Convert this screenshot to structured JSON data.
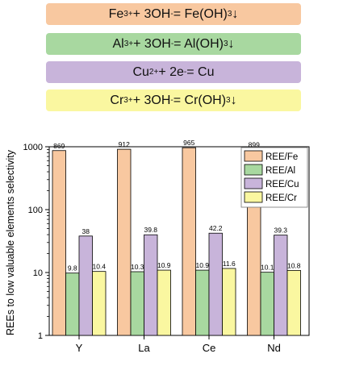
{
  "equations": {
    "fe": {
      "ion": "Fe",
      "charge": "3+",
      "mid": " + 3OH",
      "neg": "-",
      "eq": " = Fe(OH)",
      "sub": "3",
      "arrow": "↓",
      "color": "#F8C8A0"
    },
    "al": {
      "ion": "Al",
      "charge": "3+",
      "mid": " + 3OH",
      "neg": "-",
      "eq": " = Al(OH)",
      "sub": "3",
      "arrow": "↓",
      "color": "#A8D8A0"
    },
    "cu": {
      "ion": "Cu",
      "charge": "2+",
      "mid": " + 2e",
      "neg": "-",
      "eq": " = Cu",
      "color": "#C8B4DA"
    },
    "cr": {
      "ion": "Cr",
      "charge": "3+",
      "mid": " + 3OH",
      "neg": "-",
      "eq": " = Cr(OH)",
      "sub": "3",
      "arrow": "↓",
      "color": "#FAF7A0"
    }
  },
  "chart_data": {
    "type": "bar",
    "ylabel": "REEs to low valuable elements selectivity",
    "xlabel": "",
    "yscale": "log",
    "ylim": [
      1,
      1000
    ],
    "yticks": [
      "1",
      "10",
      "100",
      "1000"
    ],
    "categories": [
      "Y",
      "La",
      "Ce",
      "Nd"
    ],
    "series": [
      {
        "name": "REE/Fe",
        "values": [
          869,
          912,
          965,
          899
        ],
        "labels": [
          "869",
          "912",
          "965",
          "899"
        ],
        "color": "#F8C8A0"
      },
      {
        "name": "REE/Al",
        "values": [
          9.8,
          10.3,
          10.9,
          10.1
        ],
        "labels": [
          "9.8",
          "10.3",
          "10.9",
          "10.1"
        ],
        "color": "#A8D8A0"
      },
      {
        "name": "REE/Cu",
        "values": [
          38,
          39.8,
          42.2,
          39.3
        ],
        "labels": [
          "38",
          "39.8",
          "42.2",
          "39.3"
        ],
        "color": "#C8B4DA"
      },
      {
        "name": "REE/Cr",
        "values": [
          10.4,
          10.9,
          11.6,
          10.8
        ],
        "labels": [
          "10.4",
          "10.9",
          "11.6",
          "10.8"
        ],
        "color": "#FAF7A0"
      }
    ],
    "legend": "top-right",
    "grid": false
  }
}
